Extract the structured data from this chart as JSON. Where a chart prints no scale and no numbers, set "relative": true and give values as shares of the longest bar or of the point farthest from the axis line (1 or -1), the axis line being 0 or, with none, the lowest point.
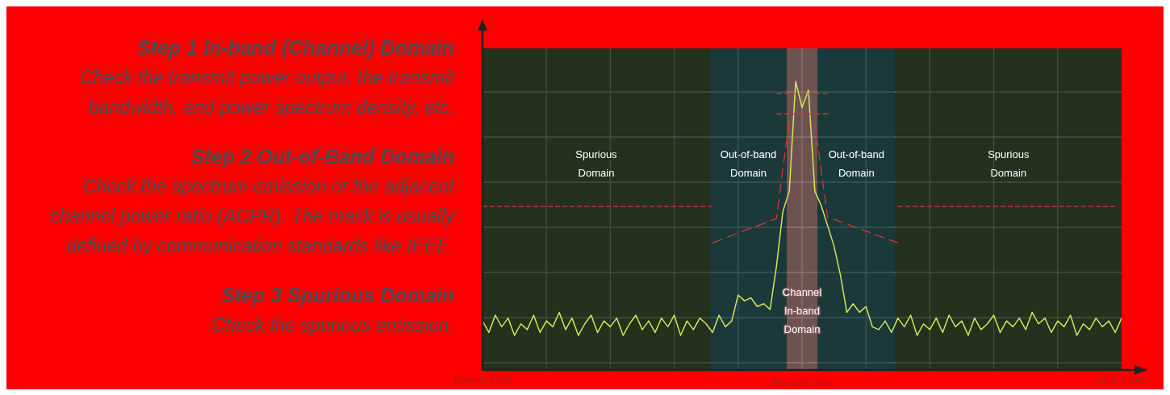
{
  "chart_data": {
    "type": "line",
    "relative": true,
    "xlabel": "Frequency Axis",
    "categories": [
      "Down to 9 kHz",
      null,
      null,
      null,
      null,
      null,
      null,
      null,
      null,
      null,
      null,
      null,
      null,
      null,
      null,
      null,
      null,
      null,
      null,
      null,
      null,
      null,
      null,
      null,
      null,
      null,
      null,
      null,
      null,
      null,
      null,
      null,
      null,
      null,
      null,
      null,
      null,
      null,
      null,
      null,
      null,
      null,
      null,
      null,
      null,
      null,
      null,
      null,
      null,
      null,
      null,
      null,
      null,
      null,
      null,
      null,
      null,
      null,
      null,
      null,
      null,
      null,
      null,
      null,
      null,
      null,
      null,
      null,
      null,
      null,
      null,
      null,
      null,
      null,
      null,
      null,
      null,
      null,
      null,
      null,
      null,
      null,
      null,
      null,
      null,
      null,
      null,
      null,
      null,
      null,
      null,
      null,
      null,
      null,
      null,
      null,
      null,
      null,
      null,
      null,
      "Up to 6 GHz"
    ],
    "grid": true,
    "marker": "none",
    "line_style": "solid",
    "annotations": [
      "Step 1 In-band (Channel) Domain",
      "Check the transmit power output, the transmit bandwidth, and power spectrum density, etc.",
      "Step 2 Out-of-Band Domain",
      "Check the spectrum emission or the adjacent channel power ratio (ACPR). The mask is usually defined by communication standards like IEEE.",
      "Step 3 Spurious Domain",
      "Check the spurious emission.",
      "Spurious Domain",
      "Out-of-band Domain",
      "Channel In-band Domain",
      "Out-of-band Domain",
      "Spurious Domain"
    ],
    "series": [
      {
        "color": "#d4e45a",
        "values": [
          0.17,
          0.13,
          0.19,
          0.15,
          0.18,
          0.12,
          0.16,
          0.14,
          0.19,
          0.13,
          0.17,
          0.15,
          0.2,
          0.14,
          0.18,
          0.12,
          0.16,
          0.19,
          0.13,
          0.17,
          0.15,
          0.18,
          0.12,
          0.16,
          0.19,
          0.14,
          0.17,
          0.13,
          0.18,
          0.15,
          0.19,
          0.12,
          0.17,
          0.14,
          0.18,
          0.16,
          0.13,
          0.19,
          0.15,
          0.17,
          0.26,
          0.24,
          0.25,
          0.22,
          0.23,
          0.21,
          0.36,
          0.55,
          0.62,
          1.0,
          0.91,
          0.97,
          0.62,
          0.57,
          0.5,
          0.43,
          0.33,
          0.2,
          0.23,
          0.2,
          0.22,
          0.15,
          0.14,
          0.17,
          0.13,
          0.18,
          0.15,
          0.19,
          0.12,
          0.16,
          0.14,
          0.18,
          0.13,
          0.19,
          0.15,
          0.17,
          0.12,
          0.18,
          0.14,
          0.16,
          0.19,
          0.13,
          0.17,
          0.15,
          0.18,
          0.14,
          0.2,
          0.16,
          0.18,
          0.13,
          0.17,
          0.15,
          0.19,
          0.12,
          0.16,
          0.14,
          0.18,
          0.15,
          0.17,
          0.13,
          0.18
        ]
      },
      {
        "color": "#d9343a",
        "line_style": "dashed",
        "values": [
          0.567,
          0.567,
          0.567,
          0.567,
          0.567,
          0.567,
          0.567,
          0.567,
          0.567,
          0.567,
          0.567,
          0.567,
          0.567,
          0.567,
          0.567,
          0.567,
          0.567,
          0.567,
          0.567,
          0.567,
          0.567,
          0.567,
          0.567,
          0.567,
          0.567,
          0.567,
          0.567,
          0.567,
          0.567,
          0.567,
          0.567,
          0.567,
          0.567,
          0.567,
          0.567,
          0.567,
          0.567,
          null,
          null,
          null,
          null,
          null,
          null,
          null,
          null,
          null,
          null,
          null,
          null,
          null,
          null,
          null,
          null,
          null,
          null,
          null,
          null,
          null,
          null,
          null,
          null,
          null,
          null,
          null,
          null,
          null,
          null,
          null,
          null,
          null,
          null,
          null,
          null,
          null,
          null,
          null,
          null,
          null,
          null,
          null,
          null,
          null,
          null,
          null,
          null,
          null,
          null,
          null,
          null,
          null,
          null,
          null,
          null,
          null,
          null,
          null,
          null,
          null,
          null,
          null,
          null
        ]
      },
      {
        "color": "#d9343a",
        "line_style": "dashed",
        "values": [
          null,
          null,
          null,
          null,
          null,
          null,
          null,
          null,
          null,
          null,
          null,
          null,
          null,
          null,
          null,
          null,
          null,
          null,
          null,
          null,
          null,
          null,
          null,
          null,
          null,
          null,
          null,
          null,
          null,
          null,
          null,
          null,
          null,
          null,
          null,
          null,
          0.441,
          0.449,
          0.458,
          0.466,
          0.475,
          0.483,
          0.492,
          0.5,
          0.508,
          0.517,
          0.525,
          0.7,
          0.86,
          null,
          null,
          null,
          null,
          null,
          null,
          null,
          null,
          null,
          null,
          null,
          null,
          null,
          null,
          null,
          null,
          null,
          null,
          null,
          null,
          null,
          null,
          null,
          null,
          null,
          null,
          null,
          null,
          null,
          null,
          null,
          null,
          null,
          null,
          null,
          null,
          null,
          null,
          null,
          null,
          null,
          null,
          null,
          null,
          null,
          null,
          null,
          null,
          null,
          null,
          null,
          null
        ]
      },
      {
        "color": "#d9343a",
        "line_style": "dashed",
        "values": [
          null,
          null,
          null,
          null,
          null,
          null,
          null,
          null,
          null,
          null,
          null,
          null,
          null,
          null,
          null,
          null,
          null,
          null,
          null,
          null,
          null,
          null,
          null,
          null,
          null,
          null,
          null,
          null,
          null,
          null,
          null,
          null,
          null,
          null,
          null,
          null,
          null,
          null,
          null,
          null,
          null,
          null,
          null,
          null,
          null,
          null,
          null,
          null,
          null,
          null,
          null,
          null,
          0.86,
          0.69,
          0.53,
          0.522,
          0.514,
          0.506,
          0.498,
          0.49,
          0.482,
          0.474,
          0.465,
          0.457,
          0.449,
          0.441,
          null,
          null,
          null,
          null,
          null,
          null,
          null,
          null,
          null,
          null,
          null,
          null,
          null,
          null,
          null,
          null,
          null,
          null,
          null,
          null,
          null,
          null,
          null,
          null,
          null,
          null,
          null,
          null,
          null,
          null,
          null,
          null,
          null,
          null,
          null
        ]
      },
      {
        "color": "#d9343a",
        "line_style": "dashed",
        "values": [
          null,
          null,
          null,
          null,
          null,
          null,
          null,
          null,
          null,
          null,
          null,
          null,
          null,
          null,
          null,
          null,
          null,
          null,
          null,
          null,
          null,
          null,
          null,
          null,
          null,
          null,
          null,
          null,
          null,
          null,
          null,
          null,
          null,
          null,
          null,
          null,
          null,
          null,
          null,
          null,
          null,
          null,
          null,
          null,
          null,
          null,
          null,
          null,
          null,
          null,
          null,
          null,
          null,
          null,
          null,
          null,
          null,
          null,
          null,
          null,
          null,
          null,
          null,
          null,
          null,
          0.567,
          0.567,
          0.567,
          0.567,
          0.567,
          0.567,
          0.567,
          0.567,
          0.567,
          0.567,
          0.567,
          0.567,
          0.567,
          0.567,
          0.567,
          0.567,
          0.567,
          0.567,
          0.567,
          0.567,
          0.567,
          0.567,
          0.567,
          0.567,
          0.567,
          0.567,
          0.567,
          0.567,
          0.567,
          0.567,
          0.567,
          0.567,
          0.567,
          0.567,
          0.567,
          null
        ]
      },
      {
        "color": "#d9343a",
        "line_style": "dashed",
        "values": [
          null,
          null,
          null,
          null,
          null,
          null,
          null,
          null,
          null,
          null,
          null,
          null,
          null,
          null,
          null,
          null,
          null,
          null,
          null,
          null,
          null,
          null,
          null,
          null,
          null,
          null,
          null,
          null,
          null,
          null,
          null,
          null,
          null,
          null,
          null,
          null,
          null,
          null,
          null,
          null,
          null,
          null,
          null,
          null,
          null,
          null,
          0.958,
          0.958,
          0.958,
          0.958,
          0.958,
          0.958,
          0.958,
          0.958,
          0.958,
          null,
          null,
          null,
          null,
          null,
          null,
          null,
          null,
          null,
          null,
          null,
          null,
          null,
          null,
          null,
          null,
          null,
          null,
          null,
          null,
          null,
          null,
          null,
          null,
          null,
          null,
          null,
          null,
          null,
          null,
          null,
          null,
          null,
          null,
          null,
          null,
          null,
          null,
          null,
          null,
          null,
          null,
          null,
          null,
          null,
          null
        ]
      },
      {
        "color": "#d9343a",
        "line_style": "dashed",
        "values": [
          null,
          null,
          null,
          null,
          null,
          null,
          null,
          null,
          null,
          null,
          null,
          null,
          null,
          null,
          null,
          null,
          null,
          null,
          null,
          null,
          null,
          null,
          null,
          null,
          null,
          null,
          null,
          null,
          null,
          null,
          null,
          null,
          null,
          null,
          null,
          null,
          null,
          null,
          null,
          null,
          null,
          null,
          null,
          null,
          null,
          null,
          0.888,
          0.888,
          0.888,
          0.888,
          0.888,
          0.888,
          0.888,
          0.888,
          0.888,
          null,
          null,
          null,
          null,
          null,
          null,
          null,
          null,
          null,
          null,
          null,
          null,
          null,
          null,
          null,
          null,
          null,
          null,
          null,
          null,
          null,
          null,
          null,
          null,
          null,
          null,
          null,
          null,
          null,
          null,
          null,
          null,
          null,
          null,
          null,
          null,
          null,
          null,
          null,
          null,
          null,
          null,
          null,
          null,
          null,
          null
        ]
      }
    ]
  }
}
